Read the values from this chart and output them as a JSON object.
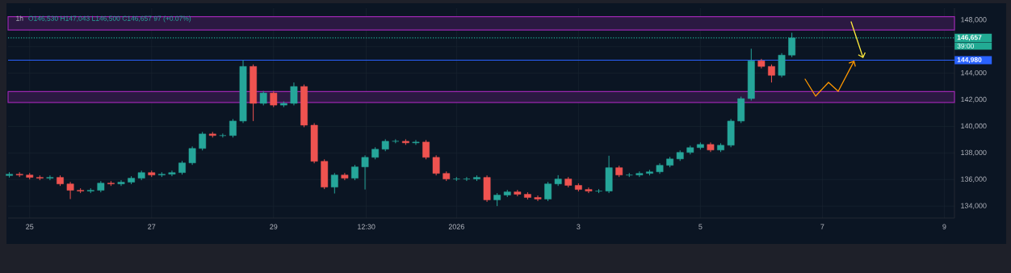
{
  "chart_data": {
    "type": "candlestick",
    "title": "1h",
    "subtitle": "O146,530 H147,043 L146,500 C146,657 97 (+0.07%)",
    "x": [
      "2025-12-24T16:00",
      "2025-12-24T20:00",
      "2025-12-25T00:00",
      "2025-12-25T04:00",
      "2025-12-25T08:00",
      "2025-12-25T12:00",
      "2025-12-25T16:00",
      "2025-12-25T20:00",
      "2025-12-26T00:00",
      "2025-12-26T04:00",
      "2025-12-26T08:00",
      "2025-12-26T12:00",
      "2025-12-26T16:00",
      "2025-12-26T20:00",
      "2025-12-27T00:00",
      "2025-12-27T04:00",
      "2025-12-27T08:00",
      "2025-12-27T12:00",
      "2025-12-27T16:00",
      "2025-12-27T20:00",
      "2025-12-28T00:00",
      "2025-12-28T04:00",
      "2025-12-28T08:00",
      "2025-12-28T12:00",
      "2025-12-28T16:00",
      "2025-12-28T20:00",
      "2025-12-29T00:00",
      "2025-12-29T04:00",
      "2025-12-29T08:00",
      "2025-12-29T12:00",
      "2025-12-29T16:00",
      "2025-12-29T20:00",
      "2025-12-30T00:00",
      "2025-12-30T04:00",
      "2025-12-30T08:00",
      "2025-12-30T12:00",
      "2025-12-30T16:00",
      "2025-12-30T20:00",
      "2025-12-31T00:00",
      "2025-12-31T04:00",
      "2025-12-31T08:00",
      "2025-12-31T12:00",
      "2025-12-31T16:00",
      "2025-12-31T20:00",
      "2026-01-01T00:00",
      "2026-01-01T04:00",
      "2026-01-01T08:00",
      "2026-01-01T12:00",
      "2026-01-01T16:00",
      "2026-01-01T20:00",
      "2026-01-02T00:00",
      "2026-01-02T04:00",
      "2026-01-02T08:00",
      "2026-01-02T12:00",
      "2026-01-02T16:00",
      "2026-01-02T20:00",
      "2026-01-03T00:00",
      "2026-01-03T04:00",
      "2026-01-03T08:00",
      "2026-01-03T12:00",
      "2026-01-03T16:00",
      "2026-01-03T20:00",
      "2026-01-04T00:00",
      "2026-01-04T04:00",
      "2026-01-04T08:00",
      "2026-01-04T12:00",
      "2026-01-04T16:00",
      "2026-01-04T20:00",
      "2026-01-05T00:00",
      "2026-01-05T04:00",
      "2026-01-05T08:00",
      "2026-01-05T12:00",
      "2026-01-05T16:00",
      "2026-01-05T20:00",
      "2026-01-06T00:00",
      "2026-01-06T04:00",
      "2026-01-06T08:00",
      "2026-01-06T12:00"
    ],
    "ohlc": [
      [
        136300,
        136550,
        136150,
        136400
      ],
      [
        136400,
        136550,
        136190,
        136340
      ],
      [
        136340,
        136490,
        136010,
        136160
      ],
      [
        136160,
        136310,
        135950,
        136100
      ],
      [
        136100,
        136310,
        135950,
        136160
      ],
      [
        136160,
        136310,
        135520,
        135670
      ],
      [
        135670,
        135820,
        134530,
        135190
      ],
      [
        135190,
        135340,
        134980,
        135130
      ],
      [
        135130,
        135340,
        134980,
        135190
      ],
      [
        135190,
        135880,
        135040,
        135730
      ],
      [
        135730,
        135880,
        135520,
        135670
      ],
      [
        135670,
        135950,
        135520,
        135800
      ],
      [
        135800,
        136250,
        135650,
        136100
      ],
      [
        136100,
        136670,
        135950,
        136520
      ],
      [
        136520,
        136670,
        136190,
        136340
      ],
      [
        136340,
        136550,
        136190,
        136400
      ],
      [
        136400,
        136670,
        136250,
        136520
      ],
      [
        136520,
        137400,
        136370,
        137250
      ],
      [
        137250,
        138490,
        137100,
        138340
      ],
      [
        138340,
        139580,
        138190,
        139430
      ],
      [
        139430,
        139580,
        139160,
        139310
      ],
      [
        139310,
        139460,
        139160,
        139310
      ],
      [
        139310,
        140550,
        139160,
        140400
      ],
      [
        140400,
        145000,
        140250,
        144510
      ],
      [
        144510,
        144660,
        140400,
        141730
      ],
      [
        141730,
        142660,
        141580,
        142510
      ],
      [
        142510,
        142660,
        141450,
        141600
      ],
      [
        141600,
        141880,
        141450,
        141730
      ],
      [
        141730,
        143300,
        141580,
        143000
      ],
      [
        143000,
        143150,
        139940,
        140090
      ],
      [
        140090,
        140240,
        137220,
        137370
      ],
      [
        137370,
        137520,
        135280,
        135430
      ],
      [
        135430,
        136490,
        134950,
        136340
      ],
      [
        136340,
        136490,
        135950,
        136100
      ],
      [
        136100,
        137100,
        135950,
        136950
      ],
      [
        136950,
        137820,
        135250,
        137670
      ],
      [
        137670,
        138430,
        137520,
        138280
      ],
      [
        138280,
        139030,
        138130,
        138880
      ],
      [
        138880,
        139030,
        138730,
        138880
      ],
      [
        138880,
        139030,
        138610,
        138760
      ],
      [
        138760,
        138970,
        138610,
        138820
      ],
      [
        138820,
        138970,
        137520,
        137670
      ],
      [
        137670,
        137820,
        136310,
        136460
      ],
      [
        136460,
        136610,
        135890,
        136040
      ],
      [
        136040,
        136190,
        135890,
        136040
      ],
      [
        136040,
        136190,
        135890,
        136040
      ],
      [
        136040,
        136310,
        135890,
        136160
      ],
      [
        136160,
        136310,
        134320,
        134470
      ],
      [
        134470,
        134980,
        134000,
        134830
      ],
      [
        134830,
        135220,
        134680,
        135070
      ],
      [
        135070,
        135220,
        134740,
        134890
      ],
      [
        134890,
        135040,
        134500,
        134650
      ],
      [
        134650,
        134800,
        134380,
        134530
      ],
      [
        134530,
        135820,
        134380,
        135670
      ],
      [
        135670,
        136330,
        135520,
        136040
      ],
      [
        136040,
        136190,
        135410,
        135560
      ],
      [
        135560,
        135710,
        135100,
        135250
      ],
      [
        135250,
        135400,
        134980,
        135130
      ],
      [
        135130,
        135280,
        134980,
        135130
      ],
      [
        135130,
        137790,
        134980,
        136890
      ],
      [
        136890,
        137040,
        136190,
        136340
      ],
      [
        136340,
        136490,
        136190,
        136340
      ],
      [
        136340,
        136610,
        136190,
        136460
      ],
      [
        136460,
        136730,
        136310,
        136580
      ],
      [
        136580,
        137220,
        136430,
        137070
      ],
      [
        137070,
        137700,
        136920,
        137550
      ],
      [
        137550,
        138190,
        137400,
        138040
      ],
      [
        138040,
        138550,
        137890,
        138400
      ],
      [
        138400,
        138790,
        138250,
        138640
      ],
      [
        138640,
        138790,
        138070,
        138220
      ],
      [
        138220,
        138730,
        138070,
        138580
      ],
      [
        138580,
        140550,
        138430,
        140400
      ],
      [
        140400,
        142240,
        140250,
        142090
      ],
      [
        142090,
        145840,
        141940,
        144930
      ],
      [
        144930,
        145080,
        144360,
        144510
      ],
      [
        144510,
        144660,
        143300,
        143840
      ],
      [
        143840,
        145510,
        143690,
        145360
      ],
      [
        145360,
        147043,
        145210,
        146657
      ]
    ],
    "xlim": [
      "2025-12-24T15:30",
      "2026-01-09T04:00"
    ],
    "xticks": [
      {
        "value": "2025-12-25",
        "label": "25"
      },
      {
        "value": "2025-12-27",
        "label": "27"
      },
      {
        "value": "2025-12-29",
        "label": "29"
      },
      {
        "value": "2025-12-30T12:30",
        "label": "12:30"
      },
      {
        "value": "2026-01-01",
        "label": "2026"
      },
      {
        "value": "2026-01-03",
        "label": "3"
      },
      {
        "value": "2026-01-05",
        "label": "5"
      },
      {
        "value": "2026-01-07",
        "label": "7"
      },
      {
        "value": "2026-01-09",
        "label": "9"
      }
    ],
    "ylim": [
      133100,
      148900
    ],
    "yticks": [
      {
        "value": 134000,
        "label": "134,000"
      },
      {
        "value": 136000,
        "label": "136,000"
      },
      {
        "value": 138000,
        "label": "138,000"
      },
      {
        "value": 140000,
        "label": "140,000"
      },
      {
        "value": 142000,
        "label": "142,000"
      },
      {
        "value": 144000,
        "label": "144,000"
      },
      {
        "value": 146000,
        "label": null
      },
      {
        "value": 148000,
        "label": "148,000"
      }
    ],
    "ref_lines": [
      {
        "axis": "y",
        "value": 146657,
        "label": "146,657",
        "color": "#22ab94",
        "line_style": "dotted"
      },
      {
        "axis": "y",
        "value": 144980,
        "label": "144,980",
        "color": "#2962ff",
        "line_style": "solid"
      }
    ],
    "bands": [
      {
        "axis": "y",
        "from": 147250,
        "to": 148260,
        "color": "#9c27b0"
      },
      {
        "axis": "y",
        "from": 141800,
        "to": 142620,
        "color": "#9c27b0"
      }
    ],
    "annotations": [
      "39:00"
    ],
    "grid": true
  }
}
